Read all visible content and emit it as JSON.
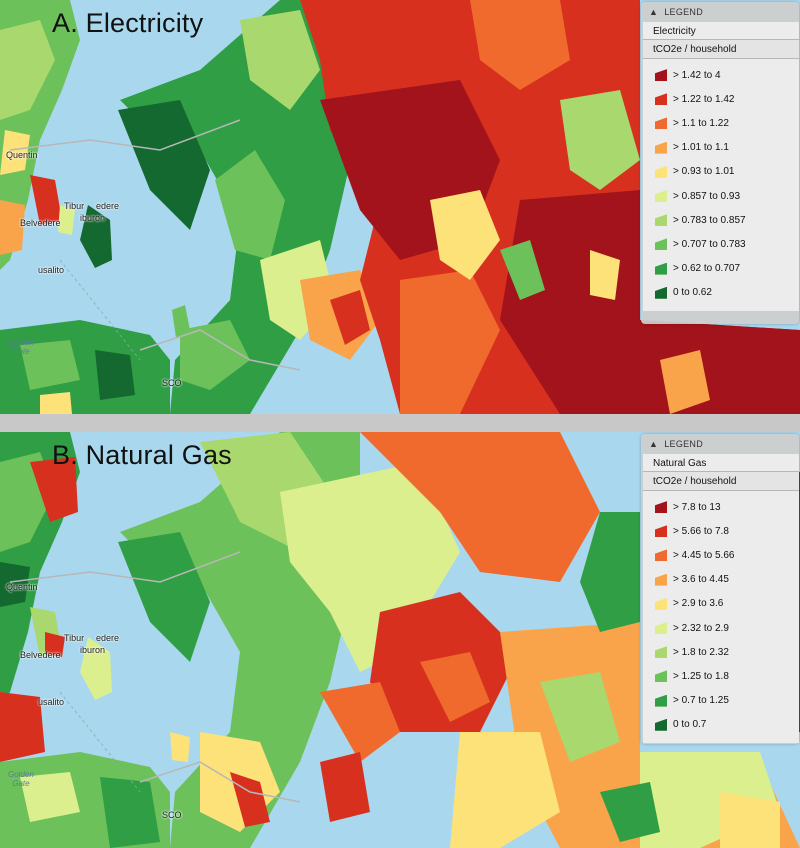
{
  "panels": [
    {
      "title": "A. Electricity",
      "legend": {
        "header": "LEGEND",
        "metric": "Electricity",
        "unit": "tCO2e / household",
        "items": [
          {
            "label": "> 1.42 to 4",
            "color": "#a3131b"
          },
          {
            "label": "> 1.22 to 1.42",
            "color": "#d7301f"
          },
          {
            "label": "> 1.1 to 1.22",
            "color": "#ef6a2c"
          },
          {
            "label": "> 1.01 to 1.1",
            "color": "#f9a44a"
          },
          {
            "label": "> 0.93 to 1.01",
            "color": "#fde27a"
          },
          {
            "label": "> 0.857 to 0.93",
            "color": "#dcef8e"
          },
          {
            "label": "> 0.783 to 0.857",
            "color": "#a9d86e"
          },
          {
            "label": "> 0.707 to 0.783",
            "color": "#6cc15a"
          },
          {
            "label": "> 0.62 to 0.707",
            "color": "#2f9e44"
          },
          {
            "label": "0 to 0.62",
            "color": "#13692f"
          }
        ]
      }
    },
    {
      "title": "B. Natural Gas",
      "legend": {
        "header": "LEGEND",
        "metric": "Natural Gas",
        "unit": "tCO2e / household",
        "items": [
          {
            "label": "> 7.8 to 13",
            "color": "#a3131b"
          },
          {
            "label": "> 5.66 to 7.8",
            "color": "#d7301f"
          },
          {
            "label": "> 4.45 to 5.66",
            "color": "#ef6a2c"
          },
          {
            "label": "> 3.6 to 4.45",
            "color": "#f9a44a"
          },
          {
            "label": "> 2.9 to 3.6",
            "color": "#fde27a"
          },
          {
            "label": "> 2.32 to 2.9",
            "color": "#dcef8e"
          },
          {
            "label": "> 1.8 to 2.32",
            "color": "#a9d86e"
          },
          {
            "label": "> 1.25 to 1.8",
            "color": "#6cc15a"
          },
          {
            "label": "> 0.7 to 1.25",
            "color": "#2f9e44"
          },
          {
            "label": "0 to 0.7",
            "color": "#13692f"
          }
        ]
      }
    }
  ],
  "places": {
    "quentin": "Quentin",
    "tiburon": "Tibur",
    "belvedere": "edere",
    "sausalito": "usalito",
    "golden_gate": "Golden\nGate",
    "sf": "SCO",
    "belvedere2": "Belvedere",
    "aburon": "iburon"
  },
  "colors": {
    "water": "#a9d8ee",
    "land_light": "#f3f1ea"
  }
}
